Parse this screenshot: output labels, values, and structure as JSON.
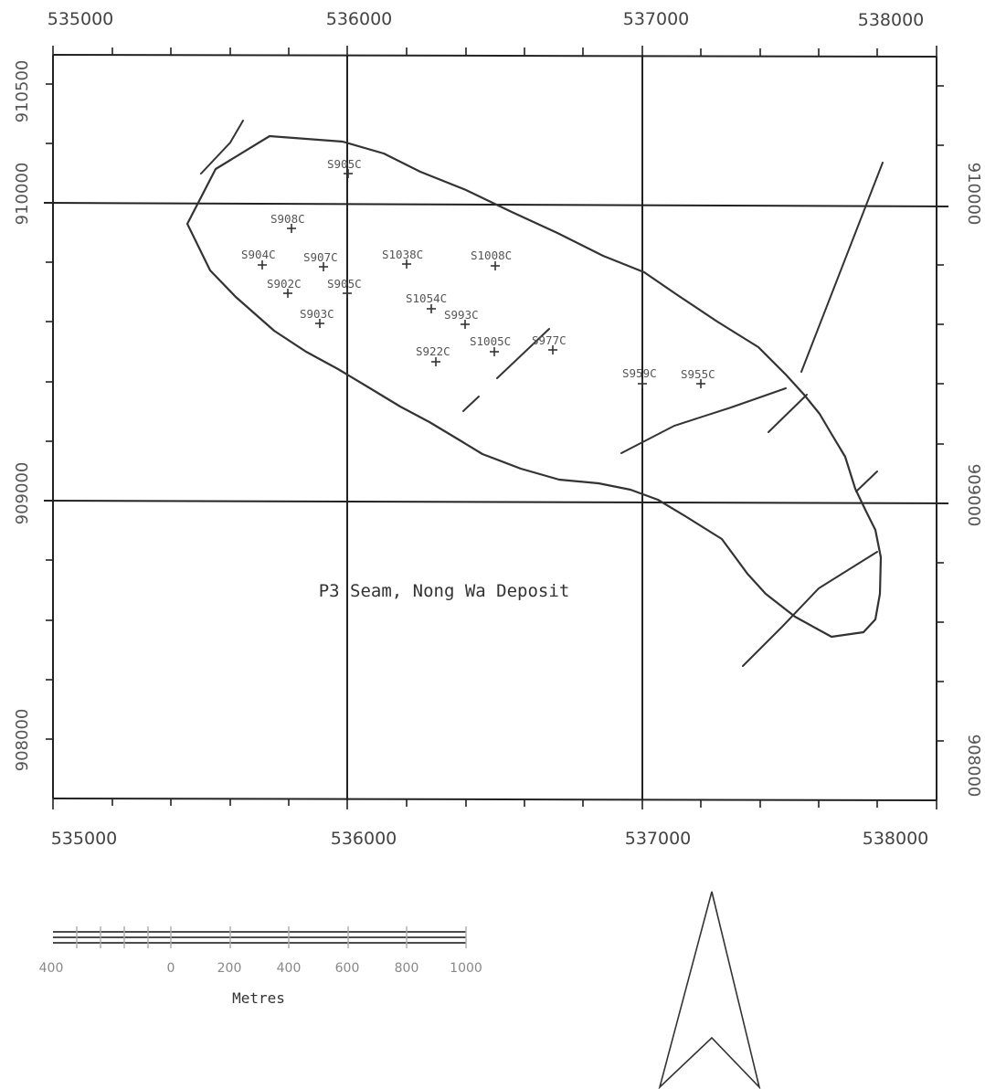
{
  "map": {
    "title": "P3 Seam, Nong Wa Deposit",
    "easting_ticks": [
      "535000",
      "536000",
      "537000",
      "538000"
    ],
    "northing_ticks": [
      "910500",
      "910000",
      "909000",
      "908000"
    ],
    "boreholes": [
      {
        "id": "S905C-north",
        "label": "S905C"
      },
      {
        "id": "S908C",
        "label": "S908C"
      },
      {
        "id": "S904C",
        "label": "S904C"
      },
      {
        "id": "S907C",
        "label": "S907C"
      },
      {
        "id": "S1038C",
        "label": "S1038C"
      },
      {
        "id": "S1008C",
        "label": "S1008C"
      },
      {
        "id": "S902C",
        "label": "S902C"
      },
      {
        "id": "S905C",
        "label": "S905C"
      },
      {
        "id": "S1054C",
        "label": "S1054C"
      },
      {
        "id": "S903C",
        "label": "S903C"
      },
      {
        "id": "S993C",
        "label": "S993C"
      },
      {
        "id": "S922C",
        "label": "S922C"
      },
      {
        "id": "S1005C",
        "label": "S1005C"
      },
      {
        "id": "S977C",
        "label": "S977C"
      },
      {
        "id": "S959C",
        "label": "S959C"
      },
      {
        "id": "S955C",
        "label": "S955C"
      }
    ]
  },
  "scale_bar": {
    "labels": [
      "400",
      "0",
      "200",
      "400",
      "600",
      "800",
      "1000"
    ],
    "unit": "Metres"
  }
}
